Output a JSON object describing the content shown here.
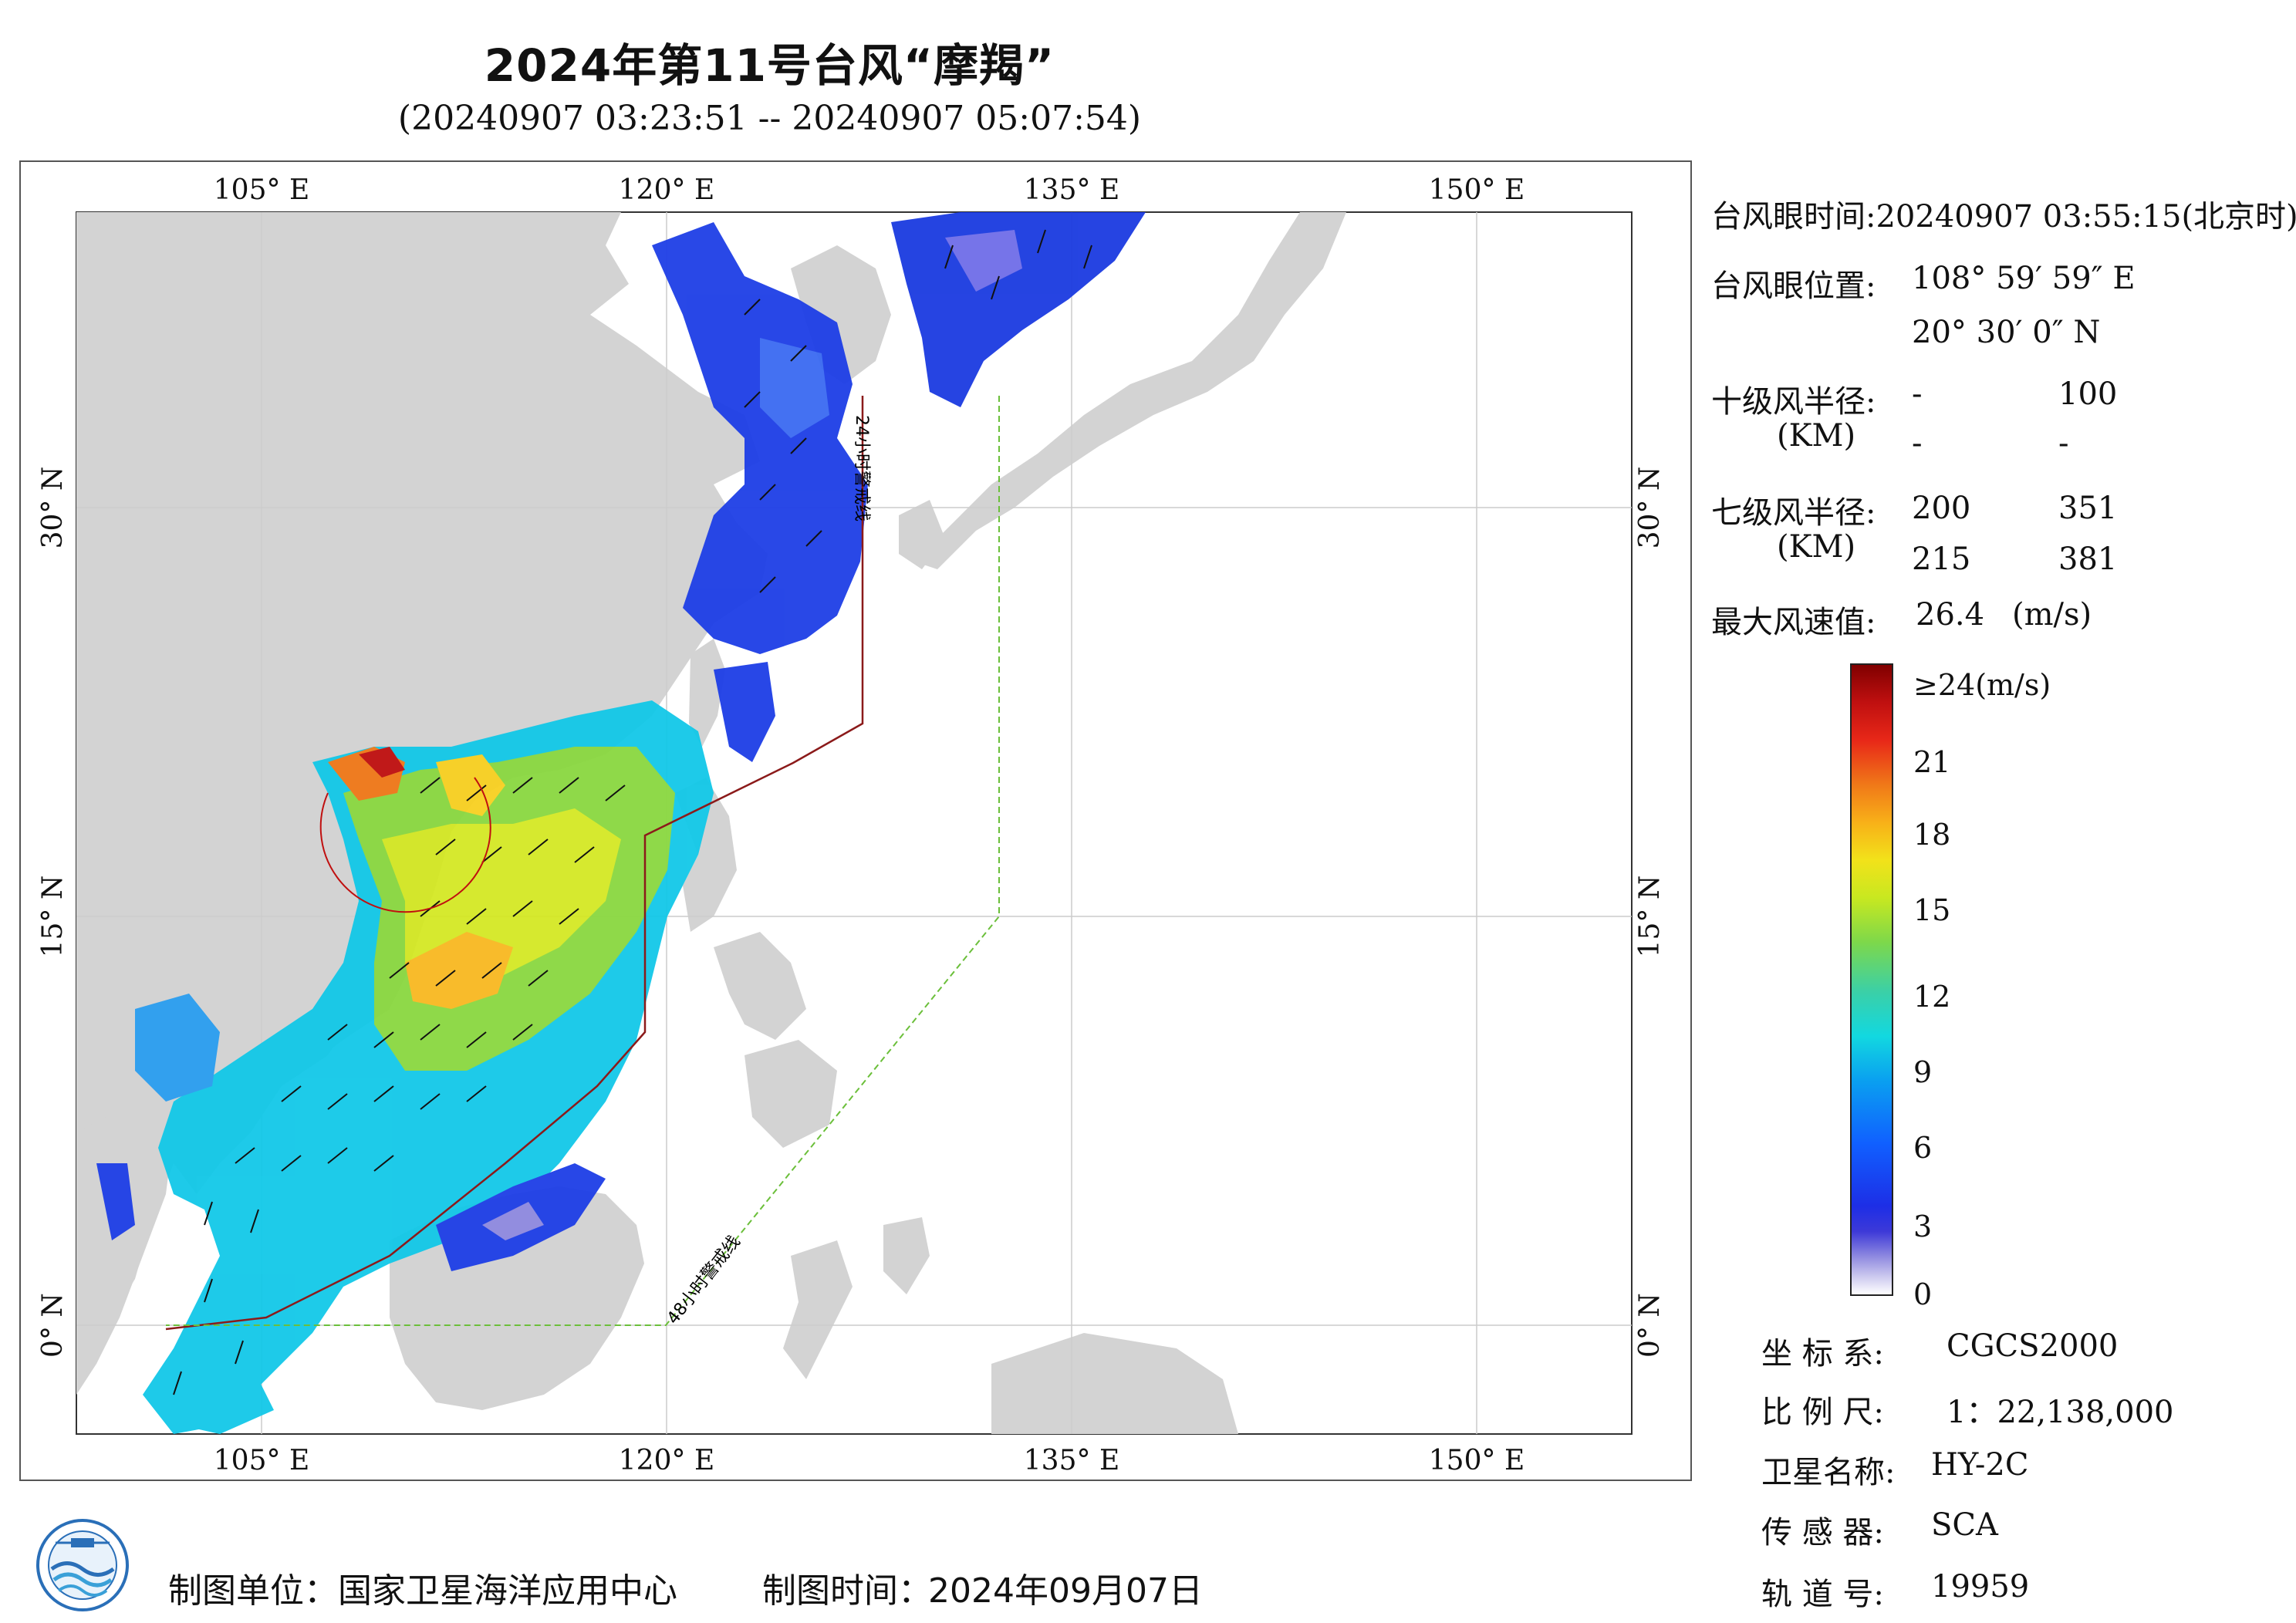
{
  "header": {
    "title": "2024年第11号台风“摩羯”",
    "subtitle": "(20240907 03:23:51 -- 20240907 05:07:54)"
  },
  "map": {
    "top_lon_labels": [
      "105° E",
      "120° E",
      "135° E",
      "150° E"
    ],
    "bottom_lon_labels": [
      "105° E",
      "120° E",
      "135° E",
      "150° E"
    ],
    "left_lat_labels": [
      "30° N",
      "15° N",
      "0° N"
    ],
    "right_lat_labels": [
      "30° N",
      "15° N",
      "0° N"
    ],
    "warning_24h": "24小时警戒线",
    "warning_48h": "48小时警戒线",
    "colors": {
      "land": "#d3d3d3",
      "sea": "#ffffff",
      "warn24": "#8b1a1a",
      "warn48": "#6bbf3a"
    }
  },
  "info": {
    "eye_time_label": "台风眼时间:",
    "eye_time_value": "20240907 03:55:15(北京时)",
    "eye_pos_label": "台风眼位置:",
    "eye_lon": "108° 59′ 59″ E",
    "eye_lat": "20° 30′ 0″ N",
    "r10_label": "十级风半径:",
    "r10_unit": "(KM)",
    "r10_values": [
      "-",
      "100",
      "-",
      "-"
    ],
    "r7_label": "七级风半径:",
    "r7_unit": "(KM)",
    "r7_values": [
      "200",
      "351",
      "215",
      "381"
    ],
    "max_wind_label": "最大风速值:",
    "max_wind_value": "26.4",
    "max_wind_unit": "(m/s)"
  },
  "legend": {
    "top_label": "≥24(m/s)",
    "ticks": [
      "21",
      "18",
      "15",
      "12",
      "9",
      "6",
      "3",
      "0"
    ]
  },
  "meta": {
    "crs_label": "坐 标 系:",
    "crs_value": "CGCS2000",
    "scale_label": "比 例 尺:",
    "scale_value": "1：22,138,000",
    "satellite_label": "卫星名称:",
    "satellite_value": "HY-2C",
    "sensor_label": "传 感 器:",
    "sensor_value": "SCA",
    "orbit_label": "轨 道 号:",
    "orbit_value": "19959"
  },
  "footer": {
    "maker_label": "制图单位：国家卫星海洋应用中心",
    "time_label": "制图时间：",
    "time_value": "2024年09月07日"
  }
}
